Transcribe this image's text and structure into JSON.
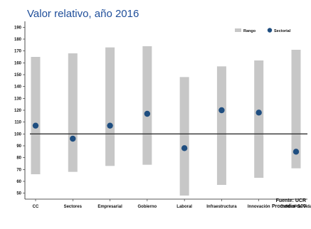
{
  "chart_data": {
    "type": "range-dot",
    "title": "Valor relativo, año 2016",
    "categories": [
      "CC",
      "Sectores",
      "Empresarial",
      "Gobierno",
      "Laboral",
      "Infraestructura",
      "Innovación",
      "Calidad de Vida"
    ],
    "series": [
      {
        "name": "Rango",
        "kind": "range",
        "low": [
          66,
          68,
          73,
          74,
          48,
          57,
          63,
          71
        ],
        "high": [
          165,
          168,
          173,
          174,
          148,
          157,
          162,
          171
        ]
      },
      {
        "name": "Sectorial",
        "kind": "point",
        "values": [
          107,
          96,
          107,
          117,
          88,
          120,
          118,
          85
        ]
      }
    ],
    "reference_line": 100,
    "ylim": [
      45,
      195
    ],
    "yticks": [
      50,
      60,
      70,
      80,
      90,
      100,
      110,
      120,
      130,
      140,
      150,
      160,
      170,
      180,
      190
    ],
    "xlabel": "",
    "ylabel": "",
    "grid": false,
    "legend_position": "top-right",
    "colors": {
      "range": "#c7c7c7",
      "point": "#1f4e80",
      "title": "#1f4e9a",
      "reference": "#333333"
    }
  },
  "source": {
    "line1": "Fuente: UCR",
    "line2": "Promedio=100"
  }
}
